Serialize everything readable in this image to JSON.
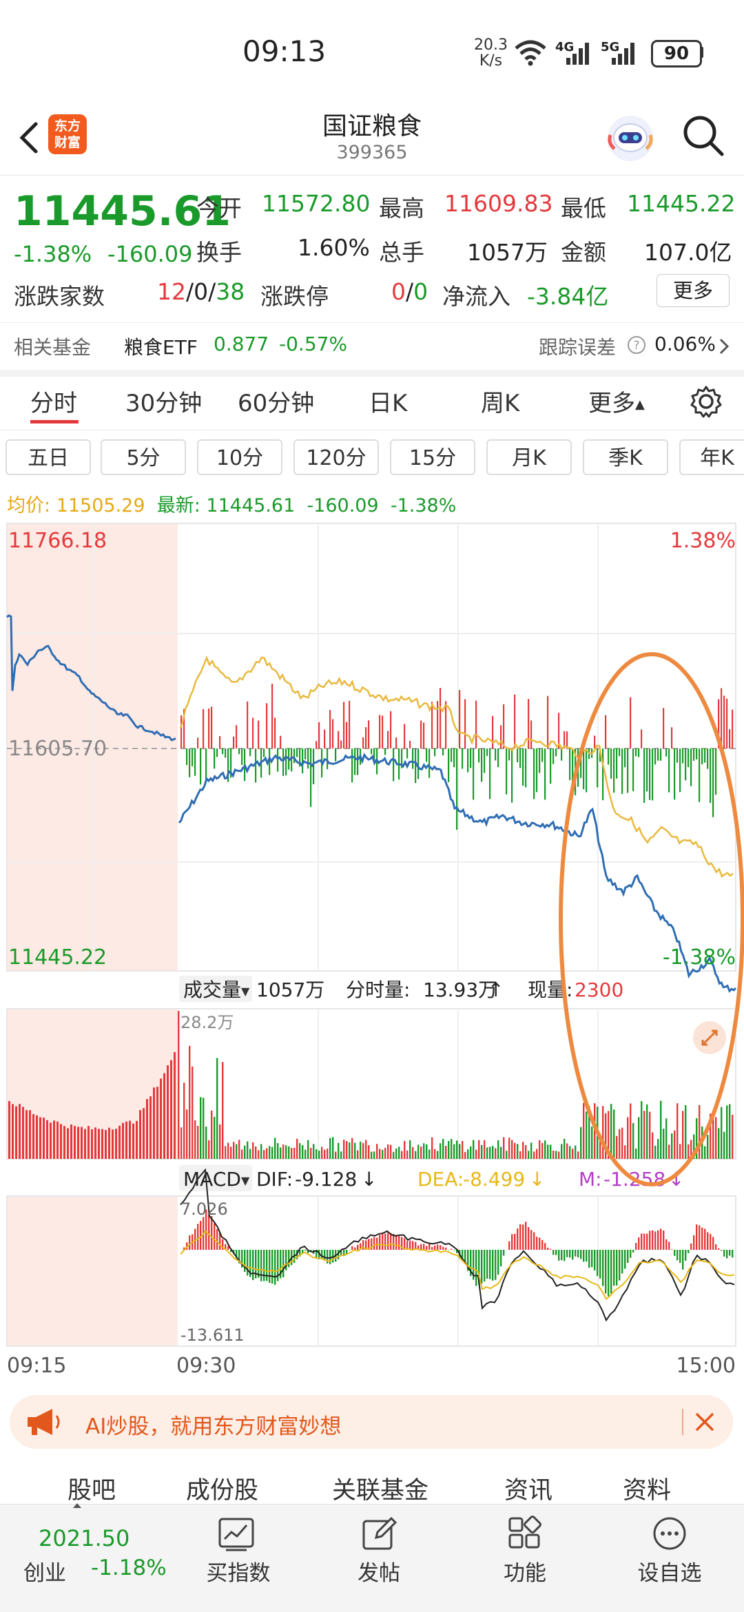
{
  "status_bar": {
    "time": "09:13",
    "net_speed_value": "20.3",
    "net_speed_unit": "K/s",
    "wifi_icon": "wifi-icon",
    "signal_4g": "4G",
    "signal_5g": "5G",
    "battery": "90"
  },
  "header": {
    "title": "国证粮食",
    "code": "399365",
    "logo_text_1": "东方",
    "logo_text_2": "财富"
  },
  "quote": {
    "price": "11445.61",
    "change_pct": "-1.38%",
    "change_abs": "-160.09",
    "open_label": "今开",
    "open": "11572.80",
    "high_label": "最高",
    "high": "11609.83",
    "low_label": "最低",
    "low": "11445.22",
    "turnover_label": "换手",
    "turnover": "1.60%",
    "volume_label": "总手",
    "volume": "1057万",
    "amount_label": "金额",
    "amount": "107.0亿",
    "breadth_label": "涨跌家数",
    "breadth_up": "12",
    "breadth_flat": "0",
    "breadth_down": "38",
    "limit_label": "涨跌停",
    "limit_up": "0",
    "limit_down": "0",
    "inflow_label": "净流入",
    "inflow": "-3.84亿",
    "more_label": "更多"
  },
  "fund": {
    "label": "相关基金",
    "name": "粮食ETF",
    "price": "0.877",
    "change": "-0.57%",
    "tracking_label": "跟踪误差",
    "tracking_value": "0.06%"
  },
  "period_tabs": [
    "分时",
    "30分钟",
    "60分钟",
    "日K",
    "周K",
    "更多"
  ],
  "chips": [
    "五日",
    "5分",
    "10分",
    "120分",
    "15分",
    "月K",
    "季K",
    "年K"
  ],
  "legend": {
    "avg_label": "均价:",
    "avg_value": "11505.29",
    "latest_label": "最新:",
    "latest_value": "11445.61",
    "latest_abs": "-160.09",
    "latest_pct": "-1.38%"
  },
  "price_chart": {
    "y_max": "11766.18",
    "y_mid": "11605.70",
    "y_min": "11445.22",
    "pct_max": "1.38%",
    "pct_min": "-1.38%"
  },
  "volume_header": {
    "select_label": "成交量",
    "total": "1057万",
    "minute_label": "分时量:",
    "minute_value": "13.93万",
    "current_label": "现量:",
    "current_value": "2300",
    "y_max": "28.2万"
  },
  "macd_header": {
    "select_label": "MACD",
    "dif_label": "DIF:",
    "dif_value": "-9.128",
    "dea_label": "DEA:",
    "dea_value": "-8.499",
    "m_label": "M:",
    "m_value": "-1.258",
    "y_max": "7.026",
    "y_min": "-13.611"
  },
  "time_axis": [
    "09:15",
    "09:30",
    "15:00"
  ],
  "banner": {
    "text": "AI炒股，就用东方财富妙想"
  },
  "sub_tabs": [
    "股吧",
    "成份股",
    "关联基金",
    "资讯",
    "资料"
  ],
  "bottom_nav": {
    "index_value": "2021.50",
    "index_name": "创业",
    "index_change": "-1.18%",
    "items": [
      "买指数",
      "发帖",
      "功能",
      "设自选"
    ]
  },
  "colors": {
    "up": "#e4393c",
    "down": "#1a9a2a",
    "avg_line": "#e6b73a",
    "price_line": "#2f6db3",
    "annotation": "#ee8a3f"
  }
}
